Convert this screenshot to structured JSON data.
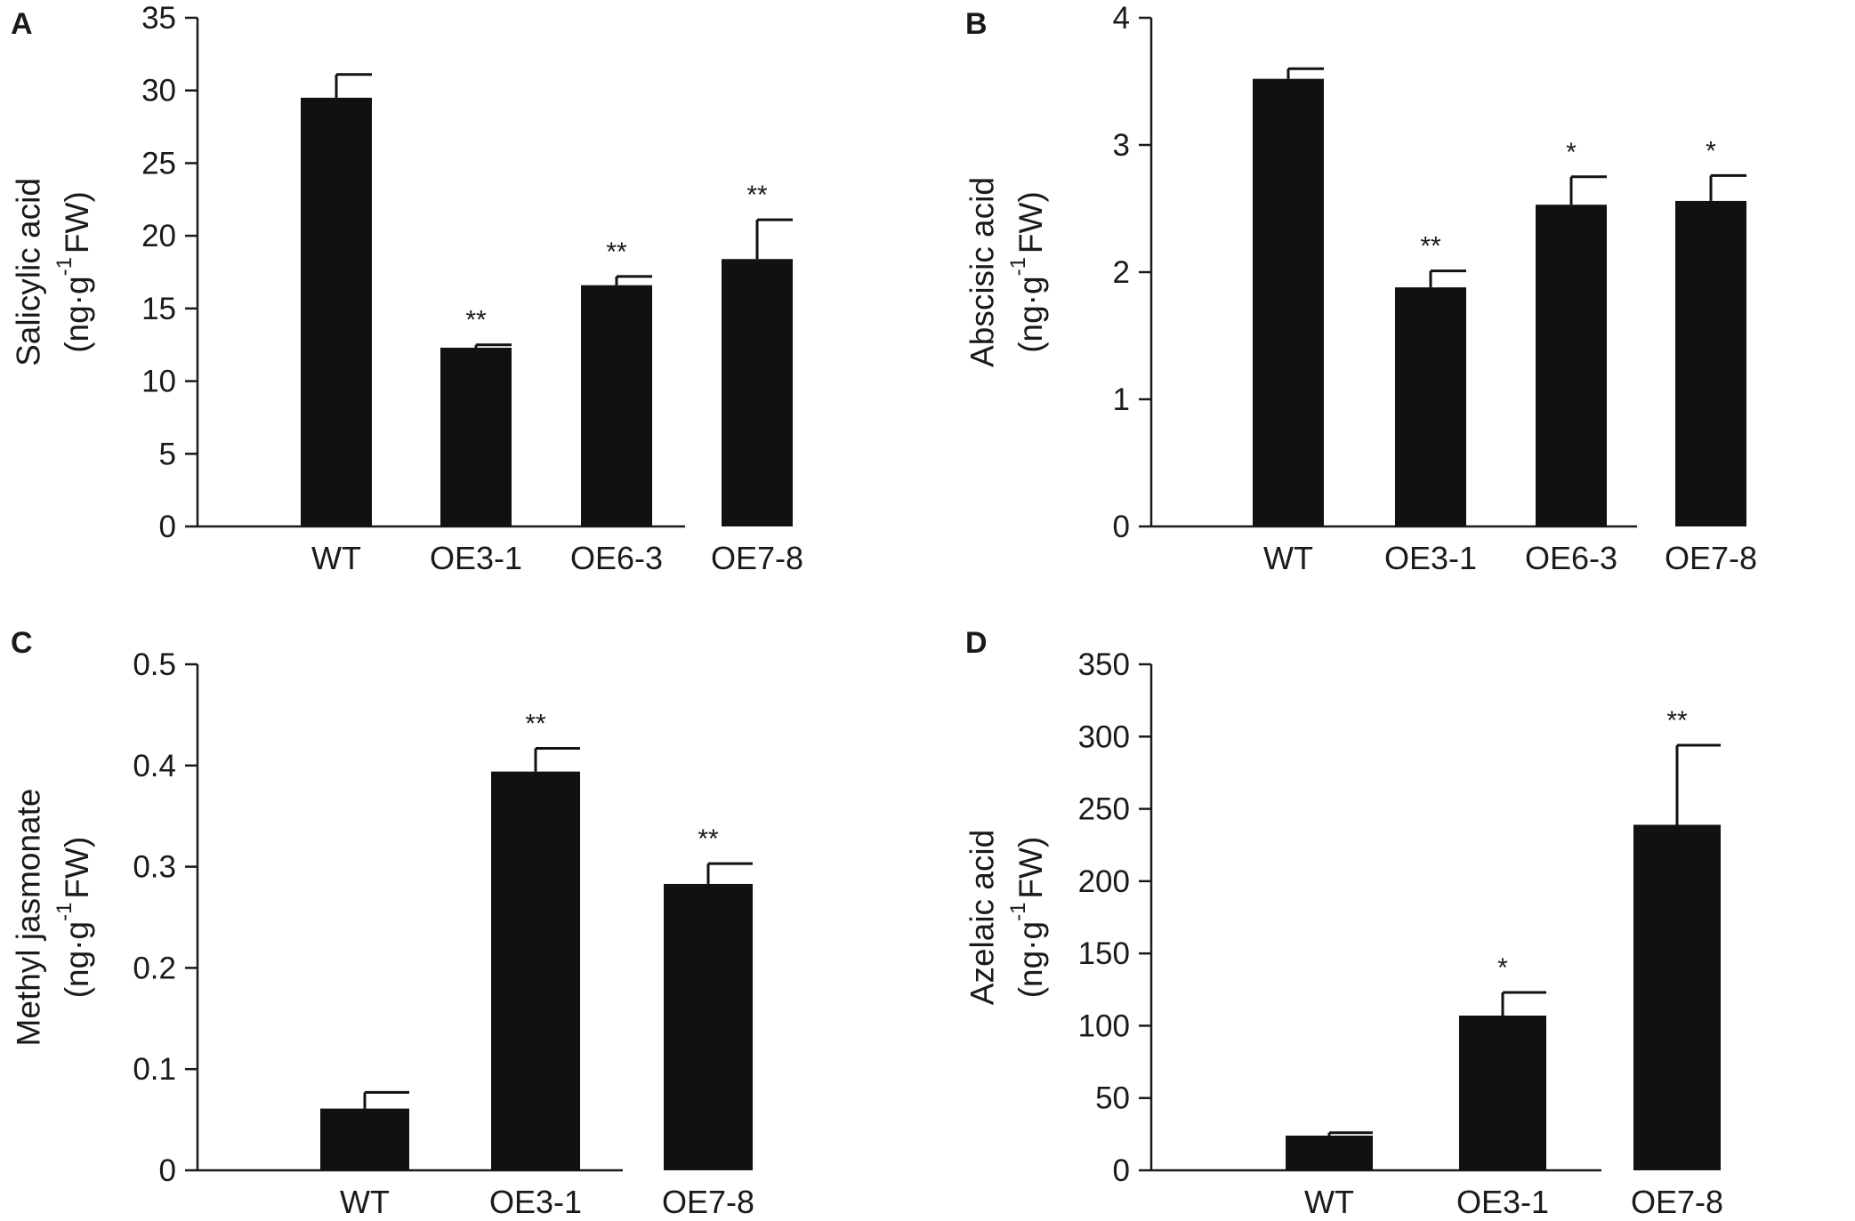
{
  "chart_data": [
    {
      "panel": "A",
      "type": "bar",
      "ylabel_line1": "Salicylic acid",
      "ylabel_line2": "(ng·g",
      "ylabel_sup": "-1",
      "ylabel_line2_end": "FW)",
      "ylim": [
        0,
        35
      ],
      "yticks": [
        "0",
        "5",
        "10",
        "15",
        "20",
        "25",
        "30",
        "35"
      ],
      "categories": [
        "WT",
        "OE3-1",
        "OE6-3",
        "OE7-8"
      ],
      "values": [
        29.5,
        12.3,
        16.6,
        18.4
      ],
      "errors": [
        1.6,
        0.2,
        0.6,
        2.7
      ],
      "significance": [
        "",
        "**",
        "**",
        "**"
      ]
    },
    {
      "panel": "B",
      "type": "bar",
      "ylabel_line1": "Abscisic acid",
      "ylabel_line2": "(ng·g",
      "ylabel_sup": "-1",
      "ylabel_line2_end": "FW)",
      "ylim": [
        0,
        4
      ],
      "yticks": [
        "0",
        "1",
        "2",
        "3",
        "4"
      ],
      "categories": [
        "WT",
        "OE3-1",
        "OE6-3",
        "OE7-8"
      ],
      "values": [
        3.52,
        1.88,
        2.53,
        2.56
      ],
      "errors": [
        0.08,
        0.13,
        0.22,
        0.2
      ],
      "significance": [
        "",
        "**",
        "*",
        "*"
      ]
    },
    {
      "panel": "C",
      "type": "bar",
      "ylabel_line1": "Methyl jasmonate",
      "ylabel_line2": "(ng·g",
      "ylabel_sup": "-1",
      "ylabel_line2_end": "FW)",
      "ylim": [
        0,
        0.5
      ],
      "yticks": [
        "0",
        "0.1",
        "0.2",
        "0.3",
        "0.4",
        "0.5"
      ],
      "categories": [
        "WT",
        "OE3-1",
        "OE7-8"
      ],
      "values": [
        0.061,
        0.394,
        0.283
      ],
      "errors": [
        0.016,
        0.023,
        0.02
      ],
      "significance": [
        "",
        "**",
        "**"
      ]
    },
    {
      "panel": "D",
      "type": "bar",
      "ylabel_line1": "Azelaic acid",
      "ylabel_line2": "(ng·g",
      "ylabel_sup": "-1",
      "ylabel_line2_end": "FW)",
      "ylim": [
        0,
        350
      ],
      "yticks": [
        "0",
        "50",
        "100",
        "150",
        "200",
        "250",
        "300",
        "350"
      ],
      "categories": [
        "WT",
        "OE3-1",
        "OE7-8"
      ],
      "values": [
        24,
        107,
        239
      ],
      "errors": [
        2,
        16,
        55
      ],
      "significance": [
        "",
        "*",
        "**"
      ]
    }
  ]
}
